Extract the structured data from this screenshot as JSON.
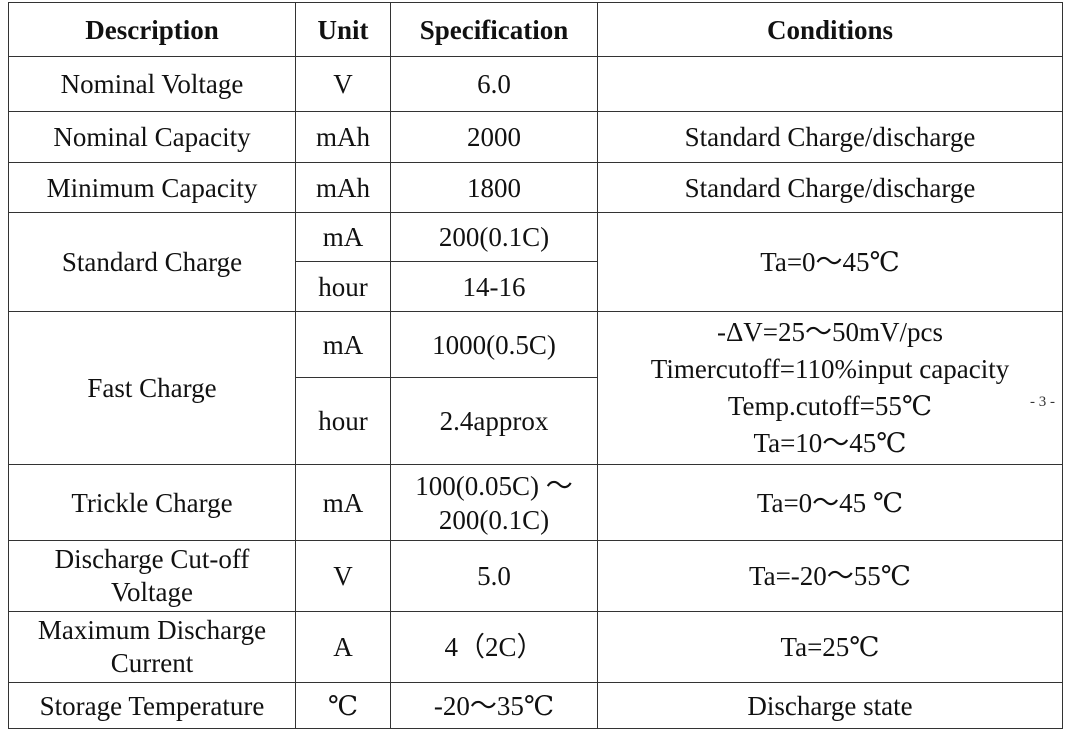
{
  "table": {
    "headers": {
      "description": "Description",
      "unit": "Unit",
      "specification": "Specification",
      "conditions": "Conditions"
    },
    "rows": {
      "nominal_voltage": {
        "description": "Nominal Voltage",
        "unit": "V",
        "specification": "6.0",
        "conditions": ""
      },
      "nominal_capacity": {
        "description": "Nominal Capacity",
        "unit": "mAh",
        "specification": "2000",
        "conditions": "Standard Charge/discharge"
      },
      "minimum_capacity": {
        "description": "Minimum Capacity",
        "unit": "mAh",
        "specification": "1800",
        "conditions": "Standard Charge/discharge"
      },
      "standard_charge": {
        "description": "Standard Charge",
        "unit_1": "mA",
        "specification_1": "200(0.1C)",
        "unit_2": "hour",
        "specification_2": "14-16",
        "conditions": "Ta=0～45℃"
      },
      "fast_charge": {
        "description": "Fast Charge",
        "unit_1": "mA",
        "specification_1": "1000(0.5C)",
        "unit_2": "hour",
        "specification_2": "2.4approx",
        "conditions_lines": [
          "-ΔV=25～50mV/pcs",
          "Timercutoff=110%input capacity",
          "Temp.cutoff=55℃",
          "Ta=10～45℃"
        ]
      },
      "trickle_charge": {
        "description": "Trickle Charge",
        "unit": "mA",
        "specification_lines": [
          "100(0.05C) ～",
          "200(0.1C)"
        ],
        "conditions": "Ta=0～45 ℃"
      },
      "discharge_cutoff_voltage": {
        "description_lines": [
          "Discharge Cut-off",
          "Voltage"
        ],
        "unit": "V",
        "specification": "5.0",
        "conditions": "Ta=-20～55℃"
      },
      "maximum_discharge_current": {
        "description_lines": [
          "Maximum Discharge",
          "Current"
        ],
        "unit": "A",
        "specification": "4（2C）",
        "conditions": "Ta=25℃"
      },
      "storage_temperature": {
        "description": "Storage Temperature",
        "unit": "℃",
        "specification": "-20～35℃",
        "conditions": "Discharge state"
      }
    }
  },
  "page_number": "- 3 -"
}
